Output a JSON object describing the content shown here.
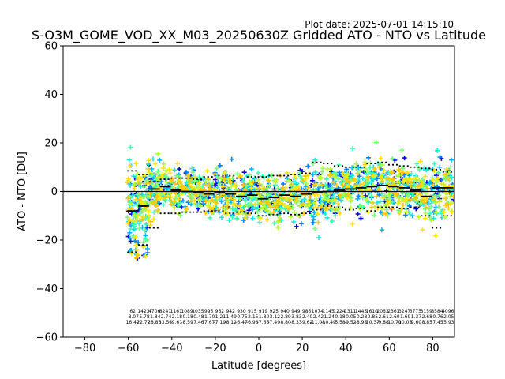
{
  "plot_date": "Plot date: 2025-07-01 14:15:10",
  "colors": {
    "axis": "#000000",
    "zero_line": "#000000",
    "median": "#000000",
    "scatter_palette": [
      "#0000d8",
      "#0080ff",
      "#00b4ff",
      "#1ee6d8",
      "#3cffb4",
      "#78ff78",
      "#b4ff3c",
      "#ffe600",
      "#ffc800"
    ]
  },
  "chart_data": {
    "type": "scatter",
    "title": "S-O3M_GOME_VOD_XX_M03_20250630Z Gridded ATO - NTO vs Latitude",
    "xlabel": "Latitude [degrees]",
    "ylabel": "ATO - NTO [DU]",
    "xlim": [
      -90,
      90
    ],
    "ylim": [
      -60,
      60
    ],
    "xticks": [
      -80,
      -60,
      -40,
      -20,
      0,
      20,
      40,
      60,
      80
    ],
    "yticks": [
      -60,
      -40,
      -20,
      0,
      20,
      40,
      60
    ],
    "xtick_labels": [
      "−80",
      "−60",
      "−40",
      "−20",
      "0",
      "20",
      "40",
      "60",
      "80"
    ],
    "ytick_labels": [
      "−60",
      "−40",
      "−20",
      "0",
      "20",
      "40",
      "60"
    ],
    "grid": false,
    "zero_line": 0,
    "bins": {
      "x": [
        -58,
        -53,
        -48,
        -43,
        -38,
        -33,
        -28,
        -23,
        -18,
        -13,
        -8,
        -3,
        2,
        7,
        12,
        17,
        22,
        27,
        32,
        37,
        42,
        47,
        52,
        57,
        62,
        67,
        72,
        77,
        82,
        87
      ],
      "median": [
        -8.0,
        -6.0,
        1.0,
        2.0,
        0.5,
        0.0,
        -0.5,
        -1.0,
        -0.5,
        -1.0,
        -2.0,
        -1.5,
        -3.0,
        -2.5,
        -1.5,
        -2.0,
        -1.0,
        -0.5,
        0.0,
        0.5,
        1.0,
        1.5,
        2.0,
        2.5,
        2.0,
        1.5,
        0.5,
        -2.0,
        1.5,
        1.5
      ],
      "upper": [
        8.5,
        7.0,
        4.0,
        5.0,
        5.5,
        5.5,
        5.0,
        6.0,
        6.5,
        6.5,
        5.5,
        6.0,
        6.0,
        6.5,
        6.5,
        7.0,
        7.5,
        12.0,
        11.5,
        10.5,
        10.0,
        10.0,
        11.5,
        12.0,
        11.0,
        10.5,
        10.0,
        9.5,
        9.0,
        8.0
      ],
      "lower": [
        -25.0,
        -22.0,
        -15.0,
        -9.0,
        -9.0,
        -8.5,
        -8.5,
        -8.0,
        -8.0,
        -9.0,
        -8.5,
        -9.0,
        -10.0,
        -9.5,
        -9.0,
        -9.5,
        -9.0,
        -7.5,
        -6.0,
        -6.5,
        -7.5,
        -7.0,
        -8.0,
        -6.5,
        -6.5,
        -7.0,
        -6.5,
        -10.0,
        -15.0,
        -10.0
      ],
      "stats_line1": [
        "62",
        "1423",
        "4706",
        "8241",
        "1161",
        "1089",
        "1035",
        "995",
        "962",
        "942",
        "930",
        "915",
        "919",
        "925",
        "940",
        "949",
        "985",
        "1074",
        "1145",
        "1224",
        "1311",
        "1445",
        "1610",
        "2063",
        "2363",
        "3247",
        "3775",
        "8159",
        "8584",
        "4096"
      ],
      "stats_line2": [
        "-8.07",
        "-5.78",
        "-1.84",
        "-2.74",
        "-2.18",
        "-0.18",
        "-0.48",
        "-1.70",
        "-1.21",
        "-1.49",
        "-0.75",
        "-2.15",
        "-1.80",
        "-3.12",
        "-2.89",
        "-3.83",
        "-2.40",
        "-2.42",
        "-1.24",
        "-0.18",
        "-0.05",
        "-0.28",
        "-0.85",
        "-2.61",
        "-2.60",
        "-1.69",
        "-1.37",
        "-2.68",
        "-0.76",
        "-2.05"
      ],
      "stats_line3": [
        "16.42",
        "22.72",
        "28.83",
        "33.56",
        "-9.61",
        "-8.59",
        "-7.46",
        "-7.67",
        "-7.19",
        "-8.12",
        "-6.47",
        "-6.98",
        "-7.66",
        "-7.49",
        "-8.80",
        "-8.33",
        "-9.62",
        "-11.08",
        "-10.49",
        "-5.58",
        "-9.52",
        "-8.93",
        "-10.37",
        "-9.88",
        "-10.70",
        "-10.05",
        "-9.60",
        "-8.85",
        "-7.45",
        "-5.93"
      ]
    }
  }
}
